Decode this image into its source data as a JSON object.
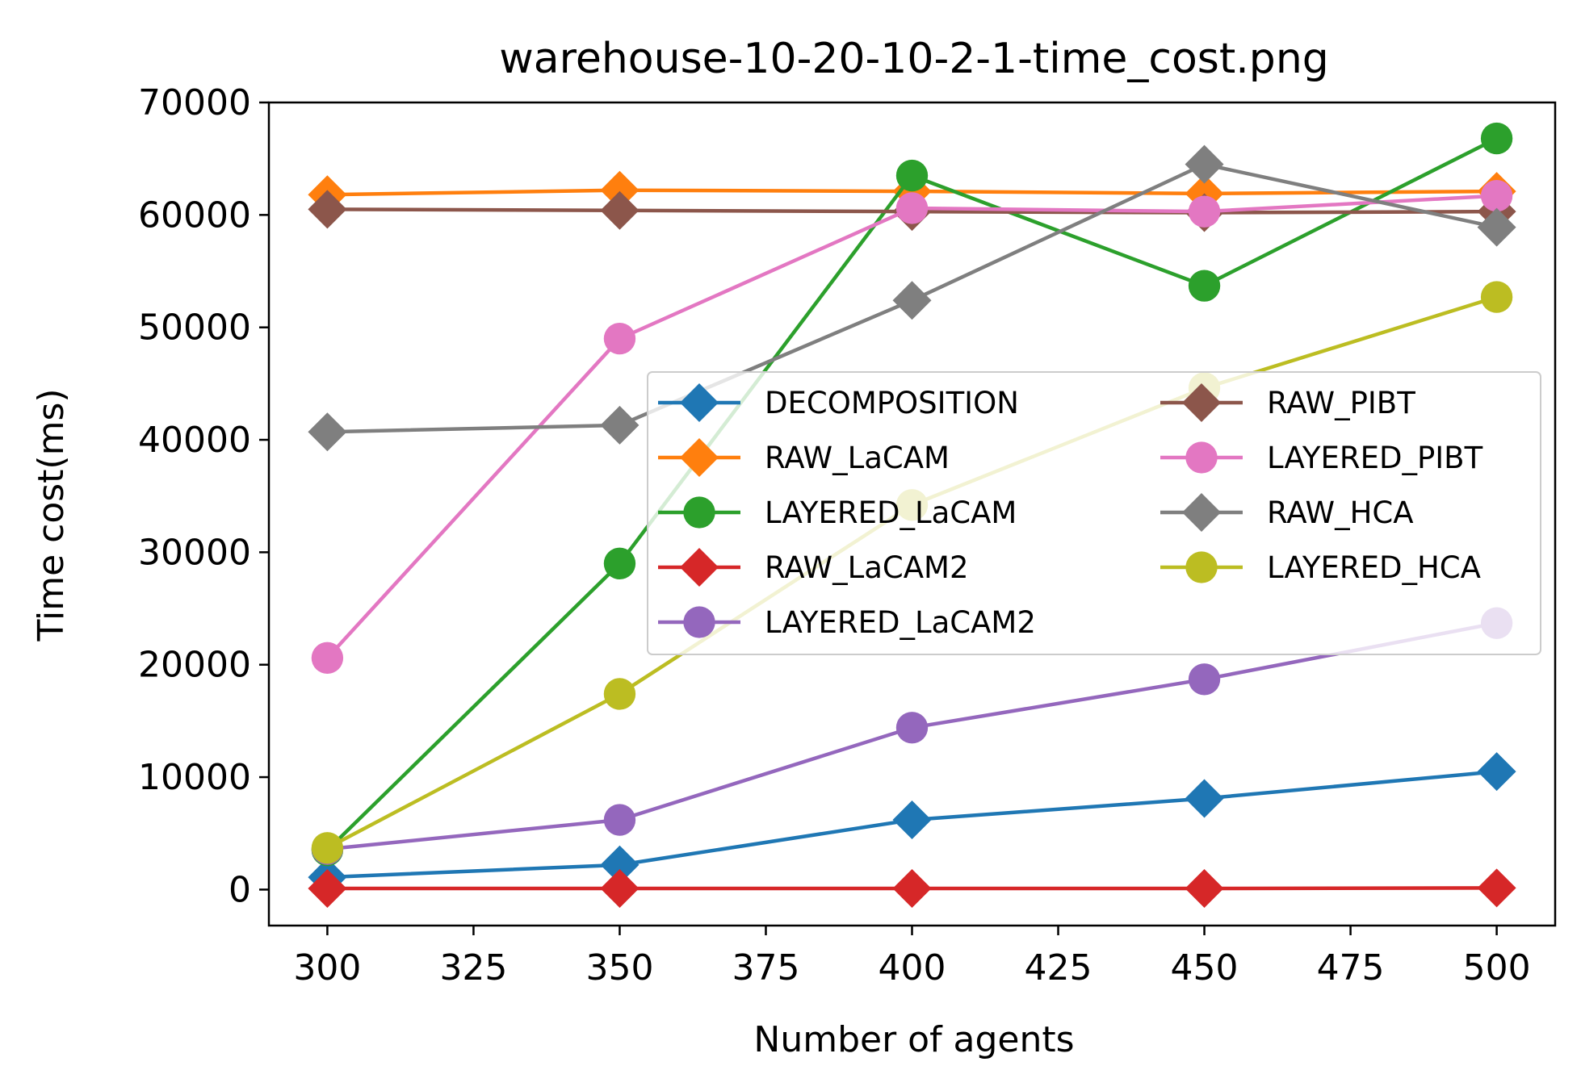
{
  "chart_data": {
    "type": "line",
    "title": "warehouse-10-20-10-2-1-time_cost.png",
    "xlabel": "Number of agents",
    "ylabel": "Time cost(ms)",
    "xlim": [
      290,
      510
    ],
    "ylim": [
      -3200,
      70000
    ],
    "xticks": [
      300,
      325,
      350,
      375,
      400,
      425,
      450,
      475,
      500
    ],
    "yticks": [
      0,
      10000,
      20000,
      30000,
      40000,
      50000,
      60000,
      70000
    ],
    "x": [
      300,
      350,
      400,
      450,
      500
    ],
    "grid": false,
    "legend_position": "center-right",
    "legend_columns": 2,
    "series": [
      {
        "name": "DECOMPOSITION",
        "color": "#1f77b4",
        "marker": "diamond",
        "values": [
          1100,
          2200,
          6200,
          8100,
          10500
        ]
      },
      {
        "name": "RAW_LaCAM",
        "color": "#ff7f0e",
        "marker": "diamond",
        "values": [
          61800,
          62200,
          62100,
          61900,
          62100
        ]
      },
      {
        "name": "LAYERED_LaCAM",
        "color": "#2ca02c",
        "marker": "circle",
        "values": [
          3500,
          29000,
          63500,
          53700,
          66800
        ]
      },
      {
        "name": "RAW_LaCAM2",
        "color": "#d62728",
        "marker": "diamond",
        "values": [
          100,
          100,
          100,
          100,
          150
        ]
      },
      {
        "name": "LAYERED_LaCAM2",
        "color": "#9467bd",
        "marker": "circle",
        "values": [
          3600,
          6200,
          14400,
          18700,
          23700
        ]
      },
      {
        "name": "RAW_PIBT",
        "color": "#8c564b",
        "marker": "diamond",
        "values": [
          60500,
          60400,
          60300,
          60200,
          60300
        ]
      },
      {
        "name": "LAYERED_PIBT",
        "color": "#e377c2",
        "marker": "circle",
        "values": [
          20600,
          49000,
          60600,
          60300,
          61700
        ]
      },
      {
        "name": "RAW_HCA",
        "color": "#7f7f7f",
        "marker": "diamond",
        "values": [
          40700,
          41300,
          52400,
          64500,
          58900
        ]
      },
      {
        "name": "LAYERED_HCA",
        "color": "#bcbd22",
        "marker": "circle",
        "values": [
          3700,
          17400,
          34200,
          44600,
          52700
        ]
      }
    ]
  }
}
